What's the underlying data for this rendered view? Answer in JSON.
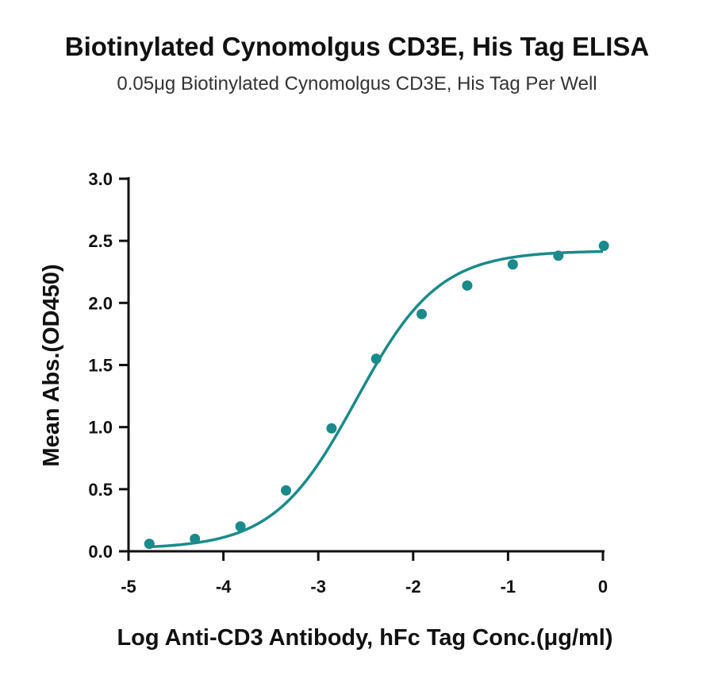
{
  "chart_data": {
    "type": "scatter",
    "title": "Biotinylated Cynomolgus CD3E, His Tag ELISA",
    "subtitle": "0.05μg Biotinylated Cynomolgus CD3E, His Tag Per Well",
    "xlabel": "Log Anti-CD3 Antibody, hFc Tag Conc.(μg/ml)",
    "ylabel": "Mean Abs.(OD450)",
    "xlim": [
      -5,
      0
    ],
    "ylim": [
      0,
      3
    ],
    "x_ticks": [
      -5,
      -4,
      -3,
      -2,
      -1,
      0
    ],
    "x_tick_labels": [
      "-5",
      "-4",
      "-3",
      "-2",
      "-1",
      "0"
    ],
    "y_ticks": [
      0,
      0.5,
      1,
      1.5,
      2,
      2.5,
      3
    ],
    "y_tick_labels": [
      "0.0",
      "0.5",
      "1.0",
      "1.5",
      "2.0",
      "2.5",
      "3.0"
    ],
    "grid": false,
    "color": "#1a8a8a",
    "series": [
      {
        "points": [
          {
            "x": -4.78,
            "y": 0.06
          },
          {
            "x": -4.3,
            "y": 0.1
          },
          {
            "x": -3.82,
            "y": 0.2
          },
          {
            "x": -3.34,
            "y": 0.49
          },
          {
            "x": -2.86,
            "y": 0.99
          },
          {
            "x": -2.39,
            "y": 1.55
          },
          {
            "x": -1.91,
            "y": 1.91
          },
          {
            "x": -1.43,
            "y": 2.14
          },
          {
            "x": -0.95,
            "y": 2.31
          },
          {
            "x": -0.47,
            "y": 2.38
          },
          {
            "x": 0.01,
            "y": 2.46
          }
        ],
        "fit": {
          "model": "4PL",
          "bottom": 0.02,
          "top": 2.42,
          "logEC50": -2.6,
          "hill": 1.0
        }
      }
    ]
  }
}
